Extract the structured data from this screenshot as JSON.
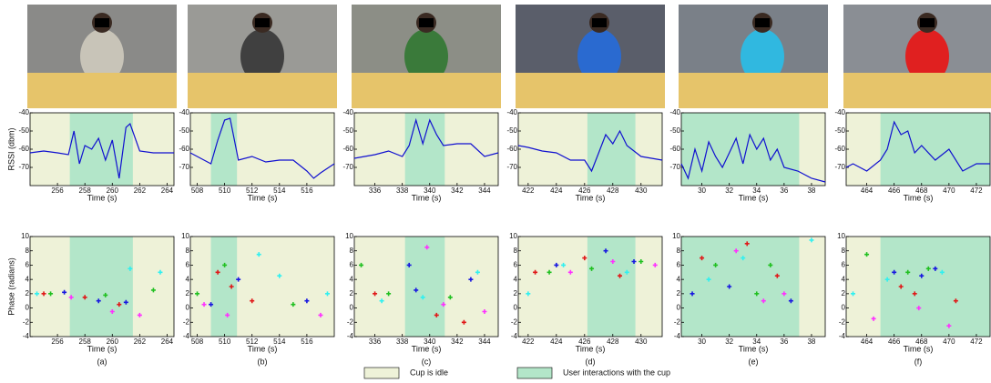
{
  "chart_data": [
    {
      "type": "line",
      "ylabel": "RSSI (dbm)",
      "xlabel": "Time (s)",
      "color": "#1010d0",
      "x": [
        254,
        255,
        256,
        256.8,
        257.2,
        257.6,
        258,
        258.5,
        259,
        259.5,
        260,
        260.5,
        261,
        261.3,
        262,
        263,
        264.5
      ],
      "values": [
        -62,
        -61,
        -62,
        -63,
        -50,
        -68,
        -58,
        -60,
        -54,
        -66,
        -55,
        -76,
        -48,
        -46,
        -61,
        -62,
        -62
      ],
      "xlim": [
        254,
        264.5
      ],
      "xticks": [
        256,
        258,
        260,
        262,
        264
      ],
      "ylim": [
        -80,
        -40
      ],
      "yticks": [
        -70,
        -60,
        -50,
        -40
      ],
      "interaction": [
        256.9,
        261.5
      ]
    },
    {
      "type": "line",
      "xlabel": "Time (s)",
      "color": "#1010d0",
      "x": [
        507.5,
        508.5,
        509,
        509.5,
        510,
        510.4,
        511,
        512,
        513,
        514,
        515,
        516,
        516.5,
        517,
        518
      ],
      "values": [
        -62,
        -66,
        -68,
        -55,
        -44,
        -43,
        -66,
        -64,
        -67,
        -66,
        -66,
        -72,
        -76,
        -73,
        -68
      ],
      "xlim": [
        507.5,
        518
      ],
      "xticks": [
        508,
        510,
        512,
        514,
        516
      ],
      "ylim": [
        -80,
        -40
      ],
      "yticks": [
        -70,
        -60,
        -50,
        -40
      ],
      "interaction": [
        509,
        510.9
      ]
    },
    {
      "type": "line",
      "xlabel": "Time (s)",
      "color": "#1010d0",
      "x": [
        334.5,
        336,
        337,
        338,
        338.5,
        339,
        339.5,
        340,
        340.5,
        341,
        342,
        343,
        344,
        345
      ],
      "values": [
        -65,
        -63,
        -61,
        -64,
        -58,
        -44,
        -57,
        -44,
        -52,
        -58,
        -57,
        -57,
        -64,
        -62
      ],
      "xlim": [
        334.5,
        345
      ],
      "xticks": [
        336,
        338,
        340,
        342,
        344
      ],
      "ylim": [
        -80,
        -40
      ],
      "yticks": [
        -70,
        -60,
        -50,
        -40
      ],
      "interaction": [
        338.2,
        341.1
      ]
    },
    {
      "type": "line",
      "xlabel": "Time (s)",
      "color": "#1010d0",
      "x": [
        421.3,
        422,
        423,
        424,
        425,
        426,
        426.5,
        427,
        427.5,
        428,
        428.5,
        429,
        430,
        431.5
      ],
      "values": [
        -58,
        -59,
        -61,
        -62,
        -66,
        -66,
        -72,
        -62,
        -52,
        -57,
        -50,
        -58,
        -64,
        -66
      ],
      "xlim": [
        421.3,
        431.5
      ],
      "xticks": [
        422,
        424,
        426,
        428,
        430
      ],
      "ylim": [
        -80,
        -40
      ],
      "yticks": [
        -70,
        -60,
        -50,
        -40
      ],
      "interaction": [
        426.2,
        429.6
      ]
    },
    {
      "type": "line",
      "xlabel": "Time (s)",
      "color": "#1010d0",
      "x": [
        28.5,
        29,
        29.5,
        30,
        30.5,
        31,
        31.5,
        32,
        32.5,
        33,
        33.5,
        34,
        34.5,
        35,
        35.5,
        36,
        37,
        38,
        39
      ],
      "values": [
        -68,
        -76,
        -60,
        -72,
        -56,
        -64,
        -70,
        -62,
        -54,
        -68,
        -52,
        -60,
        -54,
        -66,
        -60,
        -70,
        -72,
        -76,
        -78
      ],
      "xlim": [
        28.5,
        39
      ],
      "xticks": [
        30,
        32,
        34,
        36,
        38
      ],
      "ylim": [
        -80,
        -40
      ],
      "yticks": [
        -70,
        -60,
        -50,
        -40
      ],
      "interaction": [
        28.5,
        37.1
      ]
    },
    {
      "type": "line",
      "xlabel": "Time (s)",
      "color": "#1010d0",
      "x": [
        462.5,
        463,
        464,
        465,
        465.5,
        466,
        466.5,
        467,
        467.5,
        468,
        469,
        470,
        471,
        472,
        473
      ],
      "values": [
        -70,
        -68,
        -72,
        -66,
        -60,
        -45,
        -52,
        -50,
        -62,
        -58,
        -66,
        -60,
        -72,
        -68,
        -68
      ],
      "xlim": [
        462.5,
        473
      ],
      "xticks": [
        464,
        466,
        468,
        470,
        472
      ],
      "ylim": [
        -80,
        -40
      ],
      "yticks": [
        -70,
        -60,
        -50,
        -40
      ],
      "interaction": [
        465,
        473
      ]
    },
    {
      "type": "scatter",
      "ylabel": "Phase (radians)",
      "xlabel": "Time (s)",
      "caption": "(a)",
      "series": [
        {
          "color": "#e01818",
          "x": [
            255,
            258,
            260.5
          ],
          "values": [
            2,
            1.5,
            0.5
          ]
        },
        {
          "color": "#1818e0",
          "x": [
            256.5,
            259,
            261
          ],
          "values": [
            2.2,
            1,
            0.8
          ]
        },
        {
          "color": "#20c020",
          "x": [
            255.5,
            259.5,
            263
          ],
          "values": [
            2,
            1.8,
            2.5
          ]
        },
        {
          "color": "#ff30ff",
          "x": [
            257,
            260,
            262
          ],
          "values": [
            1.5,
            -0.5,
            -1
          ]
        },
        {
          "color": "#30f0f0",
          "x": [
            254.5,
            261.3,
            263.5
          ],
          "values": [
            2,
            5.5,
            5
          ]
        }
      ],
      "xlim": [
        254,
        264.5
      ],
      "xticks": [
        256,
        258,
        260,
        262,
        264
      ],
      "ylim": [
        -4,
        10
      ],
      "yticks": [
        -4,
        -2,
        0,
        2,
        4,
        6,
        8,
        10
      ],
      "interaction": [
        256.9,
        261.5
      ]
    },
    {
      "type": "scatter",
      "xlabel": "Time (s)",
      "caption": "(b)",
      "series": [
        {
          "color": "#e01818",
          "x": [
            509.5,
            510.5,
            512
          ],
          "values": [
            5,
            3,
            1
          ]
        },
        {
          "color": "#1818e0",
          "x": [
            509,
            511,
            516
          ],
          "values": [
            0.5,
            4,
            1
          ]
        },
        {
          "color": "#20c020",
          "x": [
            508,
            510,
            515
          ],
          "values": [
            2,
            6,
            0.5
          ]
        },
        {
          "color": "#ff30ff",
          "x": [
            508.5,
            510.2,
            517
          ],
          "values": [
            0.5,
            -1,
            -1
          ]
        },
        {
          "color": "#30f0f0",
          "x": [
            512.5,
            514,
            517.5
          ],
          "values": [
            7.5,
            4.5,
            2
          ]
        }
      ],
      "xlim": [
        507.5,
        518
      ],
      "xticks": [
        508,
        510,
        512,
        514,
        516
      ],
      "ylim": [
        -4,
        10
      ],
      "yticks": [
        -4,
        -2,
        0,
        2,
        4,
        6,
        8,
        10
      ],
      "interaction": [
        509,
        510.9
      ]
    },
    {
      "type": "scatter",
      "xlabel": "Time (s)",
      "caption": "(c)",
      "series": [
        {
          "color": "#e01818",
          "x": [
            336,
            340.5,
            342.5
          ],
          "values": [
            2,
            -1,
            -2
          ]
        },
        {
          "color": "#1818e0",
          "x": [
            338.5,
            339,
            343
          ],
          "values": [
            6,
            2.5,
            4
          ]
        },
        {
          "color": "#20c020",
          "x": [
            335,
            337,
            341.5
          ],
          "values": [
            6,
            2,
            1.5
          ]
        },
        {
          "color": "#ff30ff",
          "x": [
            339.8,
            341,
            344
          ],
          "values": [
            8.5,
            0.5,
            -0.5
          ]
        },
        {
          "color": "#30f0f0",
          "x": [
            336.5,
            339.5,
            343.5
          ],
          "values": [
            1,
            1.5,
            5
          ]
        }
      ],
      "xlim": [
        334.5,
        345
      ],
      "xticks": [
        336,
        338,
        340,
        342,
        344
      ],
      "ylim": [
        -4,
        10
      ],
      "yticks": [
        -4,
        -2,
        0,
        2,
        4,
        6,
        8,
        10
      ],
      "interaction": [
        338.2,
        341.1
      ]
    },
    {
      "type": "scatter",
      "xlabel": "Time (s)",
      "caption": "(d)",
      "series": [
        {
          "color": "#e01818",
          "x": [
            422.5,
            426,
            428.5
          ],
          "values": [
            5,
            7,
            4.5
          ]
        },
        {
          "color": "#1818e0",
          "x": [
            424,
            427.5,
            429.5
          ],
          "values": [
            6,
            8,
            6.5
          ]
        },
        {
          "color": "#20c020",
          "x": [
            423.5,
            426.5,
            430
          ],
          "values": [
            5,
            5.5,
            6.5
          ]
        },
        {
          "color": "#ff30ff",
          "x": [
            425,
            428,
            431
          ],
          "values": [
            5,
            6.5,
            6
          ]
        },
        {
          "color": "#30f0f0",
          "x": [
            422,
            424.5,
            429
          ],
          "values": [
            2,
            6,
            5
          ]
        }
      ],
      "xlim": [
        421.3,
        431.5
      ],
      "xticks": [
        422,
        424,
        426,
        428,
        430
      ],
      "ylim": [
        -4,
        10
      ],
      "yticks": [
        -4,
        -2,
        0,
        2,
        4,
        6,
        8,
        10
      ],
      "interaction": [
        426.2,
        429.6
      ]
    },
    {
      "type": "scatter",
      "xlabel": "Time (s)",
      "caption": "(e)",
      "series": [
        {
          "color": "#e01818",
          "x": [
            30,
            33.3,
            35.5
          ],
          "values": [
            7,
            9,
            4.5
          ]
        },
        {
          "color": "#1818e0",
          "x": [
            29.3,
            32,
            36.5
          ],
          "values": [
            2,
            3,
            1
          ]
        },
        {
          "color": "#20c020",
          "x": [
            31,
            34,
            35
          ],
          "values": [
            6,
            2,
            6
          ]
        },
        {
          "color": "#ff30ff",
          "x": [
            32.5,
            34.5,
            36
          ],
          "values": [
            8,
            1,
            2
          ]
        },
        {
          "color": "#30f0f0",
          "x": [
            30.5,
            33,
            38
          ],
          "values": [
            4,
            7,
            9.5
          ]
        }
      ],
      "xlim": [
        28.5,
        39
      ],
      "xticks": [
        30,
        32,
        34,
        36,
        38
      ],
      "ylim": [
        -4,
        10
      ],
      "yticks": [
        -4,
        -2,
        0,
        2,
        4,
        6,
        8,
        10
      ],
      "interaction": [
        28.5,
        37.1
      ]
    },
    {
      "type": "scatter",
      "xlabel": "Time (s)",
      "caption": "(f)",
      "series": [
        {
          "color": "#e01818",
          "x": [
            466.5,
            467.5,
            470.5
          ],
          "values": [
            3,
            2,
            1
          ]
        },
        {
          "color": "#1818e0",
          "x": [
            466,
            468,
            469
          ],
          "values": [
            5,
            4.5,
            5.5
          ]
        },
        {
          "color": "#20c020",
          "x": [
            464,
            467,
            468.5
          ],
          "values": [
            7.5,
            5,
            5.5
          ]
        },
        {
          "color": "#ff30ff",
          "x": [
            464.5,
            467.8,
            470
          ],
          "values": [
            -1.5,
            0,
            -2.5
          ]
        },
        {
          "color": "#30f0f0",
          "x": [
            463,
            465.5,
            469.5
          ],
          "values": [
            2,
            4,
            5
          ]
        }
      ],
      "xlim": [
        462.5,
        473
      ],
      "xticks": [
        464,
        466,
        468,
        470,
        472
      ],
      "ylim": [
        -4,
        10
      ],
      "yticks": [
        -4,
        -2,
        0,
        2,
        4,
        6,
        8,
        10
      ],
      "interaction": [
        465,
        473
      ]
    }
  ],
  "legend": [
    {
      "label": "Cup is idle",
      "color": "#eef2d8"
    },
    {
      "label": "User interactions with the cup",
      "color": "#b3e6c9"
    }
  ]
}
